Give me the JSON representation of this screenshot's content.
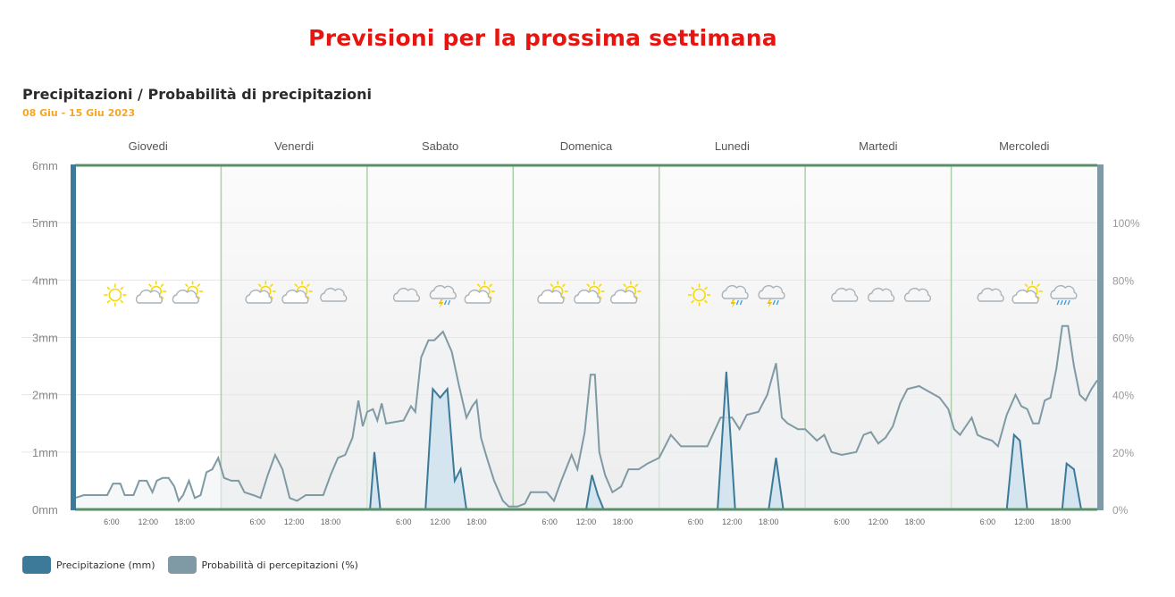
{
  "page": {
    "heading": "Previsioni per la prossima settimana"
  },
  "chart_data": {
    "type": "line",
    "title": "Precipitazioni / Probabilità di precipitazioni",
    "subtitle": "08 Giu - 15 Giu 2023",
    "days": [
      "Giovedi",
      "Venerdi",
      "Sabato",
      "Domenica",
      "Lunedi",
      "Martedi",
      "Mercoledi"
    ],
    "hour_ticks": [
      "6:00",
      "12:00",
      "18:00"
    ],
    "y_left": {
      "unit": "mm",
      "ticks": [
        "0mm",
        "1mm",
        "2mm",
        "3mm",
        "4mm",
        "5mm",
        "6mm"
      ],
      "range": [
        0,
        6
      ]
    },
    "y_right": {
      "unit": "%",
      "ticks": [
        "0%",
        "20%",
        "40%",
        "60%",
        "80%",
        "100%"
      ],
      "range": [
        0,
        120
      ]
    },
    "grid": true,
    "legend_position": "bottom-left",
    "colors": {
      "precip": "#3d7a99",
      "precip_fill": "#cfe3ee",
      "prob": "#7f9aa4",
      "prob_fill": "#eef1f3",
      "frame": "#5b8f68",
      "day_divider": "#a9cfa8",
      "grid": "#e6e6e6",
      "sun": "#f5d90a",
      "cloud": "#aab3ba",
      "bolt": "#f5c400",
      "rain": "#3d9ad6"
    },
    "weather_icons": [
      [
        "sun-icon",
        "partly-cloudy-icon",
        "partly-cloudy-icon"
      ],
      [
        "partly-cloudy-icon",
        "partly-cloudy-icon",
        "cloud-icon"
      ],
      [
        "cloud-icon",
        "thunderstorm-icon",
        "partly-cloudy-icon"
      ],
      [
        "partly-cloudy-icon",
        "partly-cloudy-icon",
        "partly-cloudy-icon"
      ],
      [
        "sun-icon",
        "thunderstorm-icon",
        "thunderstorm-icon"
      ],
      [
        "cloud-icon",
        "cloud-icon",
        "cloud-icon"
      ],
      [
        "cloud-icon",
        "partly-cloudy-icon",
        "rain-cloud-icon"
      ]
    ],
    "series": [
      {
        "name": "Precipitazione (mm)",
        "axis": "left",
        "points": [
          [
            0,
            0
          ],
          [
            2.0,
            0
          ],
          [
            2.02,
            0
          ],
          [
            2.05,
            1.0
          ],
          [
            2.09,
            0
          ],
          [
            2.4,
            0
          ],
          [
            2.45,
            2.1
          ],
          [
            2.5,
            1.95
          ],
          [
            2.55,
            2.1
          ],
          [
            2.6,
            0.5
          ],
          [
            2.64,
            0.7
          ],
          [
            2.68,
            0
          ],
          [
            3.5,
            0
          ],
          [
            3.54,
            0.6
          ],
          [
            3.58,
            0.25
          ],
          [
            3.62,
            0
          ],
          [
            4.4,
            0
          ],
          [
            4.46,
            2.4
          ],
          [
            4.52,
            0
          ],
          [
            4.75,
            0
          ],
          [
            4.8,
            0.9
          ],
          [
            4.85,
            0
          ],
          [
            6.38,
            0
          ],
          [
            6.43,
            1.3
          ],
          [
            6.47,
            1.2
          ],
          [
            6.52,
            0
          ],
          [
            6.76,
            0
          ],
          [
            6.79,
            0.8
          ],
          [
            6.84,
            0.7
          ],
          [
            6.89,
            0
          ],
          [
            7.0,
            0
          ]
        ]
      },
      {
        "name": "Probabilità di percepitazioni (%)",
        "axis": "right",
        "points": [
          [
            0.0,
            4
          ],
          [
            0.06,
            5
          ],
          [
            0.22,
            5
          ],
          [
            0.26,
            9
          ],
          [
            0.31,
            9
          ],
          [
            0.34,
            5
          ],
          [
            0.4,
            5
          ],
          [
            0.44,
            10
          ],
          [
            0.49,
            10
          ],
          [
            0.53,
            6
          ],
          [
            0.56,
            10
          ],
          [
            0.6,
            11
          ],
          [
            0.64,
            11
          ],
          [
            0.68,
            8
          ],
          [
            0.71,
            3
          ],
          [
            0.74,
            5
          ],
          [
            0.78,
            10
          ],
          [
            0.82,
            4
          ],
          [
            0.86,
            5
          ],
          [
            0.9,
            13
          ],
          [
            0.94,
            14
          ],
          [
            0.98,
            18
          ],
          [
            1.02,
            11
          ],
          [
            1.07,
            10
          ],
          [
            1.12,
            10
          ],
          [
            1.16,
            6
          ],
          [
            1.22,
            5
          ],
          [
            1.27,
            4
          ],
          [
            1.32,
            12
          ],
          [
            1.37,
            19
          ],
          [
            1.42,
            14
          ],
          [
            1.47,
            4
          ],
          [
            1.52,
            3
          ],
          [
            1.58,
            5
          ],
          [
            1.7,
            5
          ],
          [
            1.75,
            12
          ],
          [
            1.8,
            18
          ],
          [
            1.85,
            19
          ],
          [
            1.9,
            25
          ],
          [
            1.94,
            38
          ],
          [
            1.97,
            29
          ],
          [
            2.0,
            34
          ],
          [
            2.04,
            35
          ],
          [
            2.07,
            31
          ],
          [
            2.1,
            37
          ],
          [
            2.13,
            30
          ],
          [
            2.25,
            31
          ],
          [
            2.3,
            36
          ],
          [
            2.33,
            34
          ],
          [
            2.37,
            53
          ],
          [
            2.42,
            59
          ],
          [
            2.46,
            59
          ],
          [
            2.52,
            62
          ],
          [
            2.58,
            55
          ],
          [
            2.63,
            43
          ],
          [
            2.68,
            32
          ],
          [
            2.72,
            36
          ],
          [
            2.75,
            38
          ],
          [
            2.78,
            25
          ],
          [
            2.82,
            18
          ],
          [
            2.87,
            10
          ],
          [
            2.93,
            3
          ],
          [
            2.97,
            1
          ],
          [
            3.03,
            1
          ],
          [
            3.08,
            2
          ],
          [
            3.12,
            6
          ],
          [
            3.23,
            6
          ],
          [
            3.28,
            3
          ],
          [
            3.33,
            10
          ],
          [
            3.4,
            19
          ],
          [
            3.44,
            14
          ],
          [
            3.49,
            27
          ],
          [
            3.53,
            47
          ],
          [
            3.56,
            47
          ],
          [
            3.59,
            20
          ],
          [
            3.63,
            12
          ],
          [
            3.68,
            6
          ],
          [
            3.74,
            8
          ],
          [
            3.79,
            14
          ],
          [
            3.86,
            14
          ],
          [
            3.92,
            16
          ],
          [
            4.0,
            18
          ],
          [
            4.08,
            26
          ],
          [
            4.15,
            22
          ],
          [
            4.2,
            22
          ],
          [
            4.33,
            22
          ],
          [
            4.42,
            32
          ],
          [
            4.5,
            32
          ],
          [
            4.55,
            28
          ],
          [
            4.6,
            33
          ],
          [
            4.68,
            34
          ],
          [
            4.74,
            40
          ],
          [
            4.8,
            51
          ],
          [
            4.84,
            32
          ],
          [
            4.88,
            30
          ],
          [
            4.95,
            28
          ],
          [
            5.0,
            28
          ],
          [
            5.08,
            24
          ],
          [
            5.13,
            26
          ],
          [
            5.18,
            20
          ],
          [
            5.25,
            19
          ],
          [
            5.35,
            20
          ],
          [
            5.4,
            26
          ],
          [
            5.45,
            27
          ],
          [
            5.5,
            23
          ],
          [
            5.55,
            25
          ],
          [
            5.6,
            29
          ],
          [
            5.65,
            37
          ],
          [
            5.7,
            42
          ],
          [
            5.78,
            43
          ],
          [
            5.85,
            41
          ],
          [
            5.92,
            39
          ],
          [
            5.98,
            35
          ],
          [
            6.02,
            28
          ],
          [
            6.06,
            26
          ],
          [
            6.1,
            29
          ],
          [
            6.14,
            32
          ],
          [
            6.18,
            26
          ],
          [
            6.22,
            25
          ],
          [
            6.28,
            24
          ],
          [
            6.32,
            22
          ],
          [
            6.38,
            33
          ],
          [
            6.44,
            40
          ],
          [
            6.48,
            36
          ],
          [
            6.52,
            35
          ],
          [
            6.56,
            30
          ],
          [
            6.6,
            30
          ],
          [
            6.64,
            38
          ],
          [
            6.68,
            39
          ],
          [
            6.72,
            49
          ],
          [
            6.76,
            64
          ],
          [
            6.8,
            64
          ],
          [
            6.84,
            50
          ],
          [
            6.88,
            40
          ],
          [
            6.92,
            38
          ],
          [
            6.96,
            42
          ],
          [
            7.0,
            45
          ]
        ]
      }
    ]
  }
}
